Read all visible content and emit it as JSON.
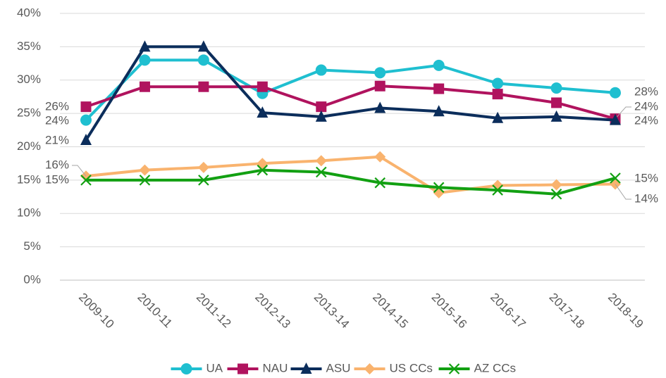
{
  "chart_data": {
    "type": "line",
    "categories": [
      "2009-10",
      "2010-11",
      "2011-12",
      "2012-13",
      "2013-14",
      "2014-15",
      "2015-16",
      "2016-17",
      "2017-18",
      "2018-19"
    ],
    "ylim": [
      0,
      40
    ],
    "yticks": [
      {
        "value": 0,
        "label": "0%"
      },
      {
        "value": 5,
        "label": "5%"
      },
      {
        "value": 10,
        "label": "10%"
      },
      {
        "value": 15,
        "label": "15%"
      },
      {
        "value": 20,
        "label": "20%"
      },
      {
        "value": 25,
        "label": "25%"
      },
      {
        "value": 30,
        "label": "30%"
      },
      {
        "value": 35,
        "label": "35%"
      },
      {
        "value": 40,
        "label": "40%"
      }
    ],
    "grid": true,
    "legend": "bottom",
    "series": [
      {
        "name": "UA",
        "color": "#1fbfd0",
        "marker": "circle",
        "values": [
          24,
          33,
          33,
          28,
          31.5,
          31.1,
          32.2,
          29.5,
          28.8,
          28.1
        ],
        "value_labels": [
          "24%",
          null,
          null,
          null,
          null,
          null,
          null,
          null,
          null,
          "28%"
        ]
      },
      {
        "name": "NAU",
        "color": "#b0135e",
        "marker": "square",
        "values": [
          26,
          29,
          29,
          29,
          26,
          29.1,
          28.7,
          27.9,
          26.6,
          24.2
        ],
        "value_labels": [
          "26%",
          null,
          null,
          null,
          null,
          null,
          null,
          null,
          null,
          "24%"
        ]
      },
      {
        "name": "ASU",
        "color": "#0b2d5b",
        "marker": "triangle",
        "values": [
          21,
          35,
          35,
          25.1,
          24.5,
          25.8,
          25.3,
          24.3,
          24.5,
          24
        ],
        "value_labels": [
          "21%",
          null,
          null,
          null,
          null,
          null,
          null,
          null,
          null,
          "24%"
        ]
      },
      {
        "name": "US CCs",
        "color": "#f9b36e",
        "marker": "diamond",
        "values": [
          15.6,
          16.5,
          16.9,
          17.5,
          17.9,
          18.5,
          13.1,
          14.2,
          14.3,
          14.4
        ],
        "value_labels": [
          "16%",
          null,
          null,
          null,
          null,
          null,
          null,
          null,
          null,
          "14%"
        ]
      },
      {
        "name": "AZ CCs",
        "color": "#12a012",
        "marker": "x",
        "values": [
          15,
          15,
          15,
          16.5,
          16.2,
          14.6,
          13.9,
          13.5,
          12.9,
          15.3
        ],
        "value_labels": [
          "15%",
          null,
          null,
          null,
          null,
          null,
          null,
          null,
          null,
          "15%"
        ]
      }
    ]
  }
}
